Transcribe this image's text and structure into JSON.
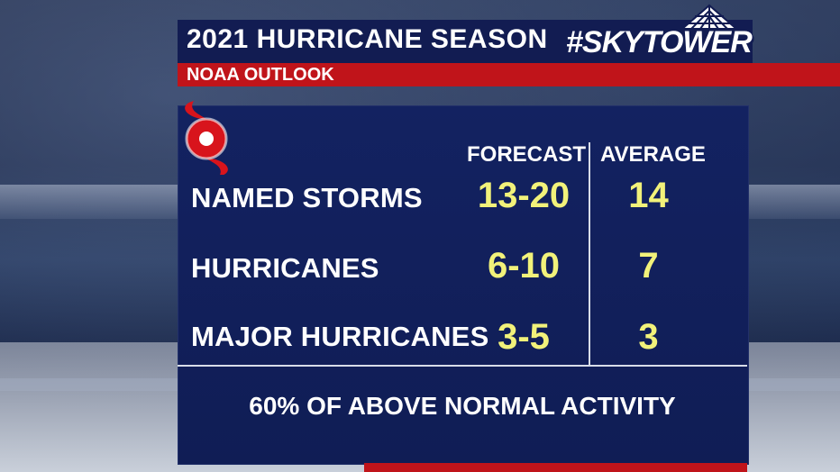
{
  "header": {
    "title": "2021 HURRICANE SEASON",
    "logo_text": "#SKYTOWER",
    "subtitle": "NOAA OUTLOOK"
  },
  "table": {
    "columns": [
      "FORECAST",
      "AVERAGE"
    ],
    "rows": [
      {
        "label": "NAMED STORMS",
        "forecast": "13-20",
        "average": "14"
      },
      {
        "label": "HURRICANES",
        "forecast": "6-10",
        "average": "7"
      },
      {
        "label": "MAJOR HURRICANES",
        "forecast": "3-5",
        "average": "3"
      }
    ]
  },
  "footer": {
    "note": "60% OF ABOVE NORMAL ACTIVITY"
  },
  "colors": {
    "panel": "#132261",
    "accent_red": "#c0141a",
    "value_yellow": "#f2f27a"
  },
  "icons": {
    "hurricane": "hurricane-symbol-icon"
  }
}
